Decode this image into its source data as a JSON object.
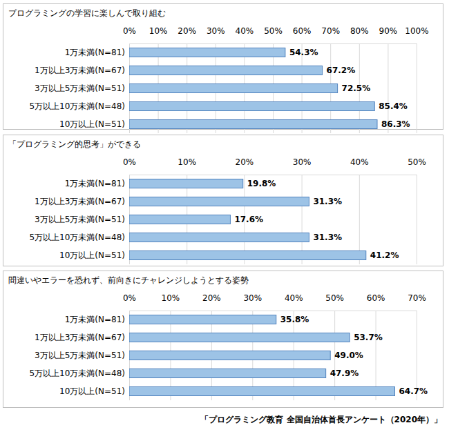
{
  "chart_data": [
    {
      "type": "bar",
      "orientation": "horizontal",
      "title": "プログラミングの学習に楽しんで取り組む",
      "categories": [
        "1万未満(N=81)",
        "1万以上3万未満(N=67)",
        "3万以上5万未満(N=51)",
        "5万以上10万未満(N=48)",
        "10万以上(N=51)"
      ],
      "values": [
        54.3,
        67.2,
        72.5,
        85.4,
        86.3
      ],
      "value_labels": [
        "54.3%",
        "67.2%",
        "72.5%",
        "85.4%",
        "86.3%"
      ],
      "color": "#9dc3e6",
      "data_labels": true,
      "grid": true,
      "xlim": [
        0,
        100
      ],
      "xticks": [
        {
          "value": 0,
          "label": "0%"
        },
        {
          "value": 10,
          "label": "10%"
        },
        {
          "value": 20,
          "label": "20%"
        },
        {
          "value": 30,
          "label": "30%"
        },
        {
          "value": 40,
          "label": "40%"
        },
        {
          "value": 50,
          "label": "50%"
        },
        {
          "value": 60,
          "label": "60%"
        },
        {
          "value": 70,
          "label": "70%"
        },
        {
          "value": 80,
          "label": "80%"
        },
        {
          "value": 90,
          "label": "90%"
        },
        {
          "value": 100,
          "label": "100%"
        }
      ]
    },
    {
      "type": "bar",
      "orientation": "horizontal",
      "title": "「プログラミング的思考」ができる",
      "categories": [
        "1万未満(N=81)",
        "1万以上3万未満(N=67)",
        "3万以上5万未満(N=51)",
        "5万以上10万未満(N=48)",
        "10万以上(N=51)"
      ],
      "values": [
        19.8,
        31.3,
        17.6,
        31.3,
        41.2
      ],
      "value_labels": [
        "19.8%",
        "31.3%",
        "17.6%",
        "31.3%",
        "41.2%"
      ],
      "color": "#9dc3e6",
      "data_labels": true,
      "grid": true,
      "xlim": [
        0,
        50
      ],
      "xticks": [
        {
          "value": 0,
          "label": "0%"
        },
        {
          "value": 10,
          "label": "10%"
        },
        {
          "value": 20,
          "label": "20%"
        },
        {
          "value": 30,
          "label": "30%"
        },
        {
          "value": 40,
          "label": "40%"
        },
        {
          "value": 50,
          "label": "50%"
        }
      ]
    },
    {
      "type": "bar",
      "orientation": "horizontal",
      "title": "間違いやエラーを恐れず、前向きにチャレンジしようとする姿勢",
      "categories": [
        "1万未満(N=81)",
        "1万以上3万未満(N=67)",
        "3万以上5万未満(N=51)",
        "5万以上10万未満(N=48)",
        "10万以上(N=51)"
      ],
      "values": [
        35.8,
        53.7,
        49.0,
        47.9,
        64.7
      ],
      "value_labels": [
        "35.8%",
        "53.7%",
        "49.0%",
        "47.9%",
        "64.7%"
      ],
      "color": "#9dc3e6",
      "data_labels": true,
      "grid": true,
      "xlim": [
        0,
        70
      ],
      "xticks": [
        {
          "value": 0,
          "label": "0%"
        },
        {
          "value": 10,
          "label": "10%"
        },
        {
          "value": 20,
          "label": "20%"
        },
        {
          "value": 30,
          "label": "30%"
        },
        {
          "value": 40,
          "label": "40%"
        },
        {
          "value": 50,
          "label": "50%"
        },
        {
          "value": 60,
          "label": "60%"
        },
        {
          "value": 70,
          "label": "70%"
        }
      ]
    }
  ],
  "source": "「プログラミング教育 全国自治体首長アンケート（2020年）」"
}
